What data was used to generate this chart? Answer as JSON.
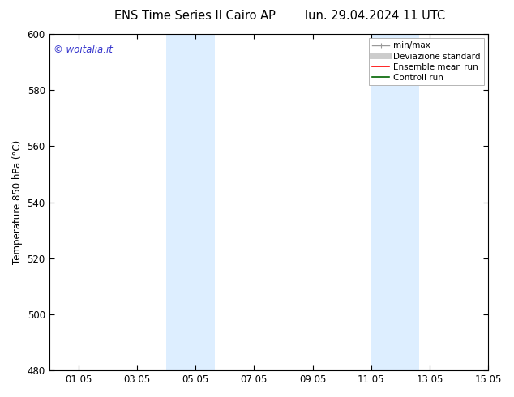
{
  "title_left": "ENS Time Series Il Cairo AP",
  "title_right": "lun. 29.04.2024 11 UTC",
  "ylabel": "Temperature 850 hPa (°C)",
  "ylim": [
    480,
    600
  ],
  "xlim": [
    0,
    14.5
  ],
  "yticks": [
    480,
    500,
    520,
    540,
    560,
    580,
    600
  ],
  "xtick_positions": [
    1,
    3,
    5,
    7,
    9,
    11,
    13,
    15
  ],
  "xtick_labels": [
    "01.05",
    "03.05",
    "05.05",
    "07.05",
    "09.05",
    "11.05",
    "13.05",
    "15.05"
  ],
  "shaded_bands": [
    {
      "xmin": 4.0,
      "xmax": 5.65
    },
    {
      "xmin": 11.0,
      "xmax": 12.65
    }
  ],
  "band_color": "#ddeeff",
  "watermark_text": "© woitalia.it",
  "watermark_color": "#3333cc",
  "background_color": "#ffffff",
  "legend_items": [
    {
      "label": "min/max",
      "color": "#999999",
      "lw": 1.0
    },
    {
      "label": "Deviazione standard",
      "color": "#cccccc",
      "lw": 5
    },
    {
      "label": "Ensemble mean run",
      "color": "red",
      "lw": 1.2
    },
    {
      "label": "Controll run",
      "color": "darkgreen",
      "lw": 1.2
    }
  ],
  "title_fontsize": 10.5,
  "tick_fontsize": 8.5,
  "ylabel_fontsize": 8.5,
  "watermark_fontsize": 8.5,
  "legend_fontsize": 7.5
}
